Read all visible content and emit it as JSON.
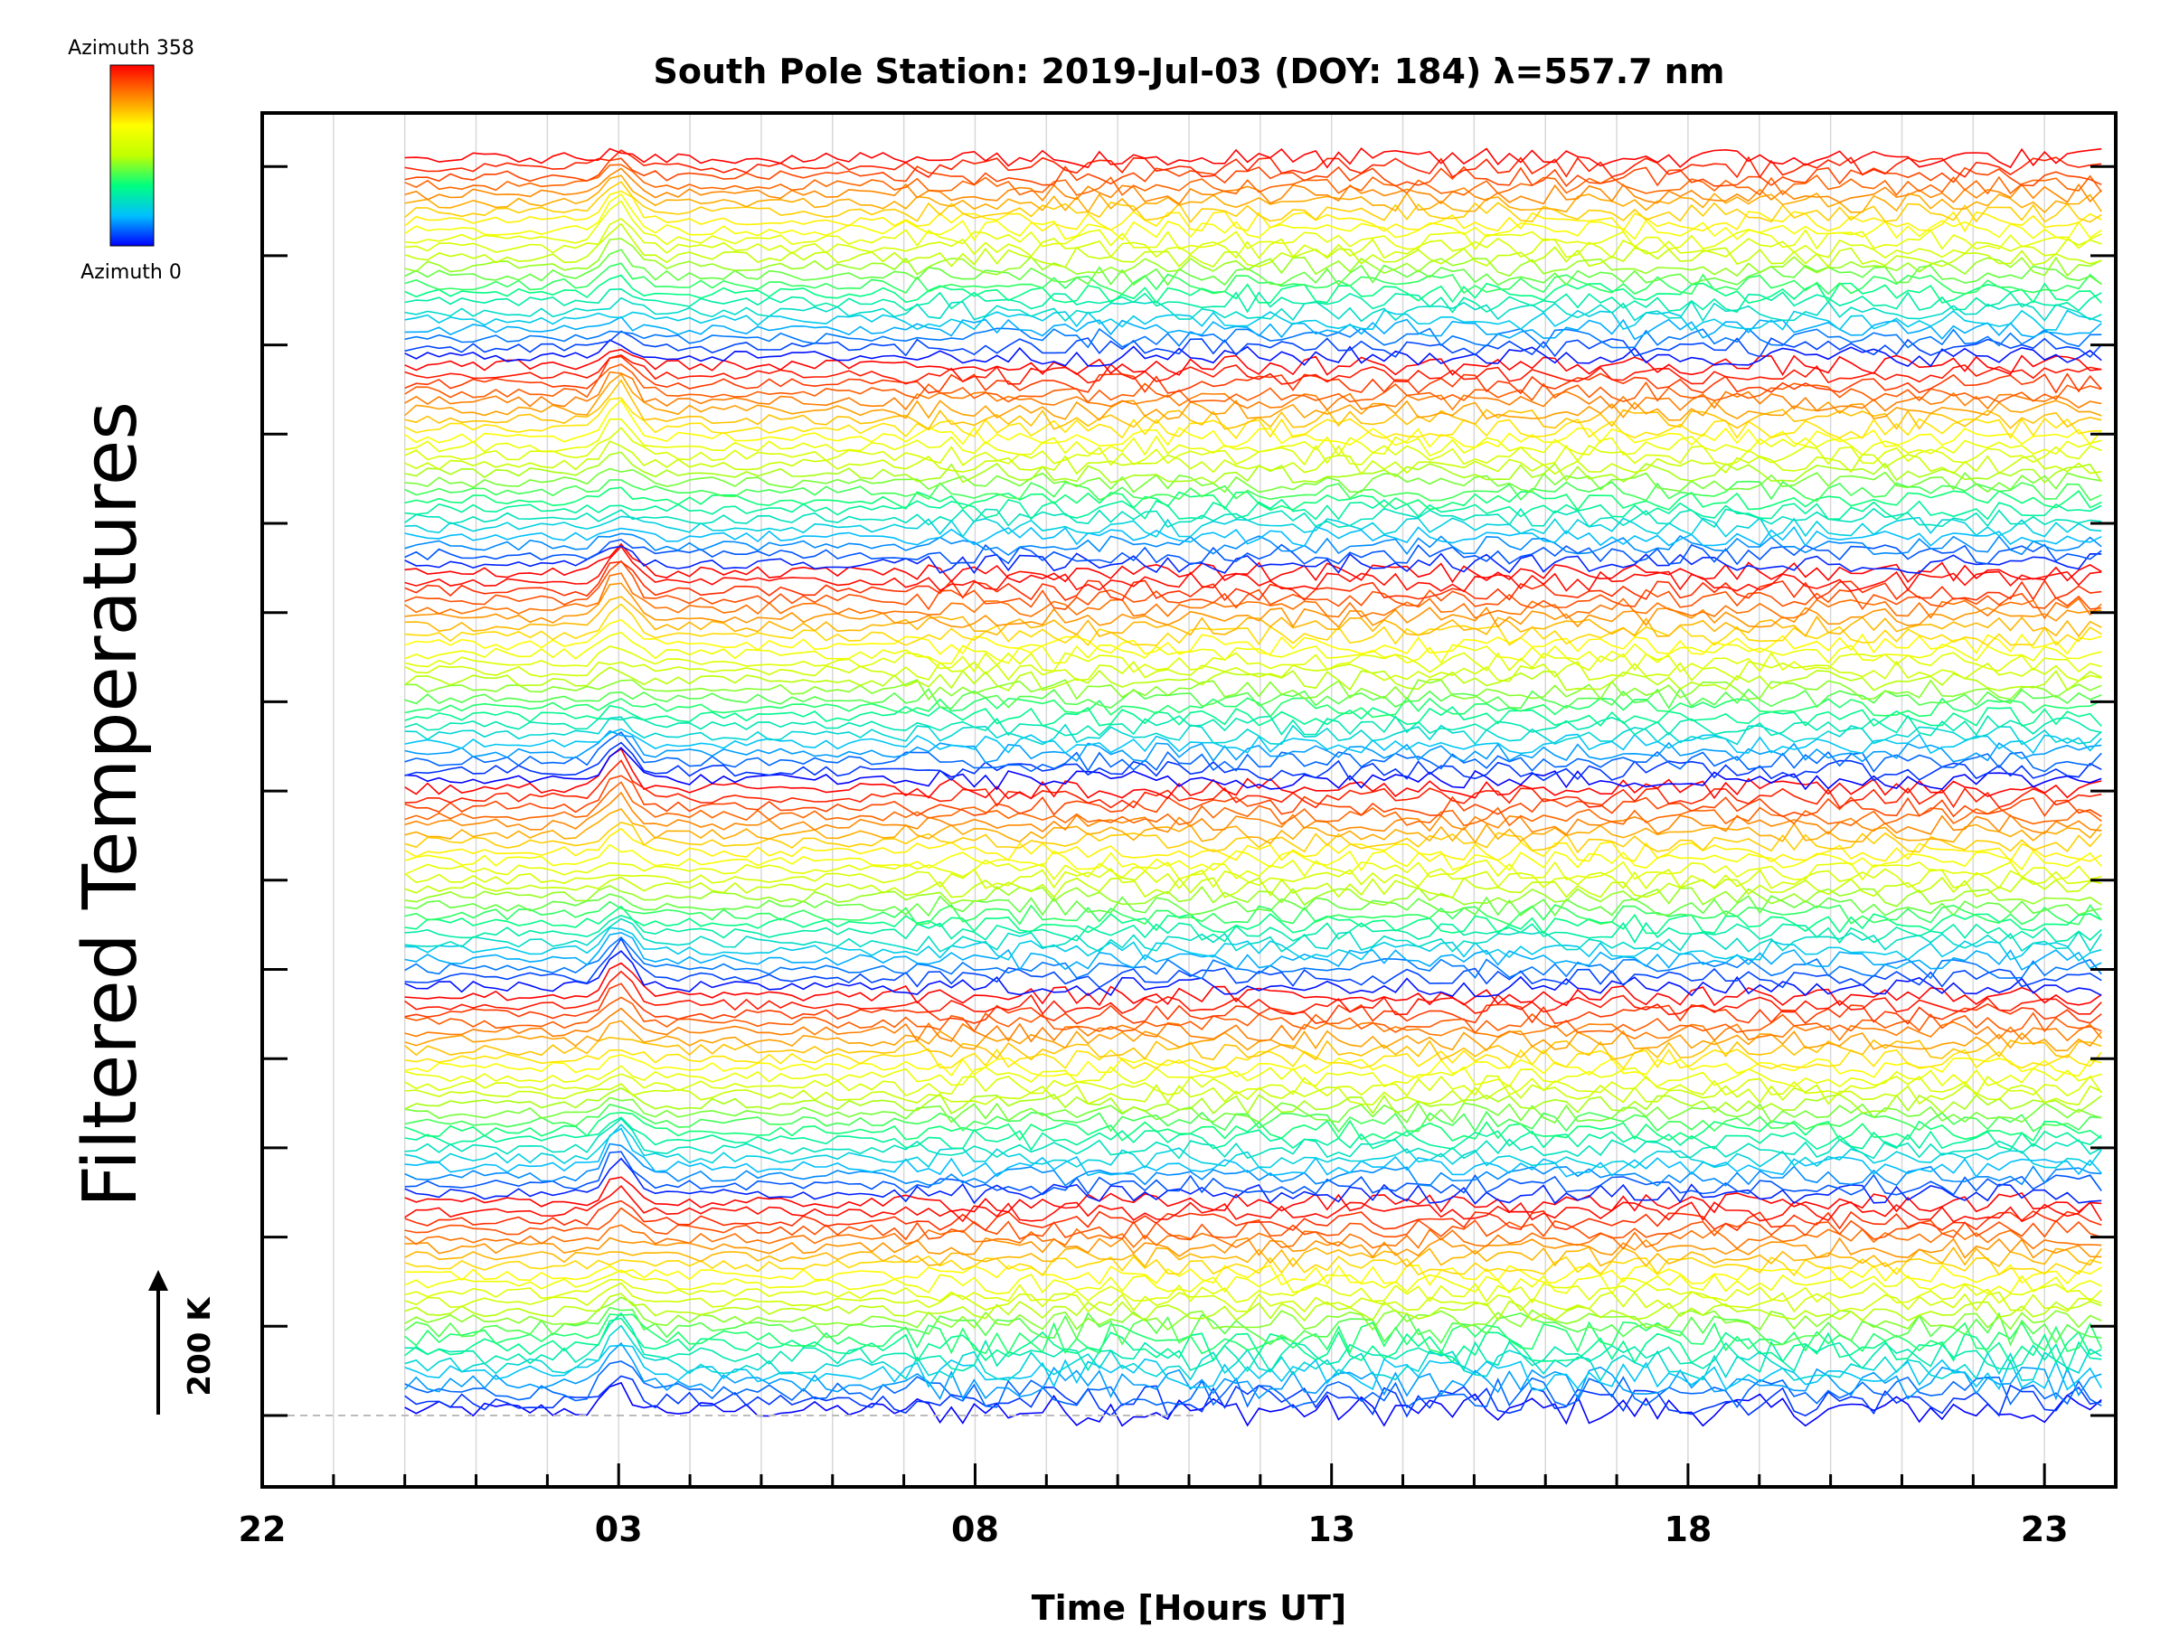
{
  "chart_data": {
    "type": "line",
    "title": "South Pole Station: 2019-Jul-03 (DOY: 184) λ=557.7 nm",
    "xlabel": "Time [Hours UT]",
    "ylabel": "Filtered Temperatures",
    "x_range_hours": [
      22,
      48.0
    ],
    "x_ticks": [
      {
        "hour": 22,
        "label": "22"
      },
      {
        "hour": 27,
        "label": "03"
      },
      {
        "hour": 32,
        "label": "08"
      },
      {
        "hour": 37,
        "label": "13"
      },
      {
        "hour": 42,
        "label": "18"
      },
      {
        "hour": 47,
        "label": "23"
      }
    ],
    "data_x_range_hours": [
      24.0,
      47.8
    ],
    "scale_bar_label": "200 K",
    "grid": true,
    "colorbar": {
      "top_label": "Azimuth 358",
      "bottom_label": "Azimuth 0",
      "min": 0,
      "max": 358,
      "colors": [
        "#0000ff",
        "#00c0ff",
        "#00ff80",
        "#c0ff00",
        "#ffff00",
        "#ff8000",
        "#ff0000"
      ]
    },
    "series_summary": "About 140 stacked, vertically offset filtered temperature traces, one per azimuth, colored by azimuth from 0 (blue) to 358 (red); the azimuth color cycle repeats 6 times down the stack."
  }
}
